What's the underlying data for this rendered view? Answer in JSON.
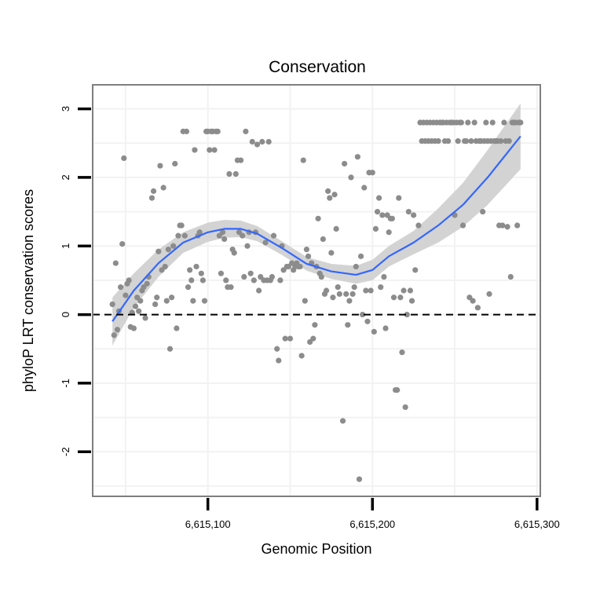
{
  "chart_data": {
    "type": "scatter",
    "title": "Conservation",
    "xlabel": "Genomic Position",
    "ylabel": "phyloP LRT conservation scores",
    "xlim": [
      6615030,
      6615302
    ],
    "ylim": [
      -2.65,
      3.35
    ],
    "x_ticks": [
      {
        "value": 6615100,
        "label": "6,615,100"
      },
      {
        "value": 6615200,
        "label": "6,615,200"
      },
      {
        "value": 6615300,
        "label": "6,615,300"
      }
    ],
    "y_ticks": [
      {
        "value": -2,
        "label": "-2"
      },
      {
        "value": -1,
        "label": "-1"
      },
      {
        "value": 0,
        "label": "0"
      },
      {
        "value": 1,
        "label": "1"
      },
      {
        "value": 2,
        "label": "2"
      },
      {
        "value": 3,
        "label": "3"
      }
    ],
    "reference_line": {
      "y": 0,
      "style": "dashed"
    },
    "grid": true,
    "colors": {
      "points": "#8c8c8c",
      "smooth": "#3366ff",
      "band": "#d3d3d3",
      "grid": "#f2f2f2",
      "frame": "#7f7f7f",
      "reference": "#000000"
    },
    "smooth": {
      "x": [
        6615042,
        6615055,
        6615070,
        6615085,
        6615100,
        6615110,
        6615120,
        6615130,
        6615145,
        6615160,
        6615175,
        6615190,
        6615200,
        6615210,
        6615225,
        6615240,
        6615255,
        6615270,
        6615290
      ],
      "y": [
        -0.1,
        0.35,
        0.75,
        1.05,
        1.2,
        1.25,
        1.25,
        1.18,
        0.97,
        0.74,
        0.63,
        0.58,
        0.65,
        0.85,
        1.05,
        1.3,
        1.6,
        2.0,
        2.6
      ],
      "lower": [
        -0.45,
        0.1,
        0.55,
        0.9,
        1.06,
        1.12,
        1.13,
        1.07,
        0.87,
        0.64,
        0.52,
        0.45,
        0.5,
        0.7,
        0.88,
        1.05,
        1.28,
        1.6,
        2.12
      ],
      "upper": [
        0.25,
        0.6,
        0.95,
        1.2,
        1.34,
        1.38,
        1.37,
        1.29,
        1.07,
        0.84,
        0.74,
        0.71,
        0.8,
        1.0,
        1.22,
        1.55,
        1.92,
        2.4,
        3.08
      ]
    },
    "points": [
      [
        6615042,
        0.15
      ],
      [
        6615043,
        -0.3
      ],
      [
        6615044,
        0.75
      ],
      [
        6615045,
        -0.22
      ],
      [
        6615046,
        0.05
      ],
      [
        6615047,
        0.4
      ],
      [
        6615048,
        1.03
      ],
      [
        6615049,
        2.28
      ],
      [
        6615050,
        0.28
      ],
      [
        6615051,
        0.45
      ],
      [
        6615052,
        0.5
      ],
      [
        6615053,
        -0.18
      ],
      [
        6615054,
        0.03
      ],
      [
        6615055,
        -0.2
      ],
      [
        6615056,
        0.12
      ],
      [
        6615057,
        0.25
      ],
      [
        6615058,
        0.05
      ],
      [
        6615059,
        0.2
      ],
      [
        6615060,
        0.35
      ],
      [
        6615061,
        0.4
      ],
      [
        6615062,
        -0.05
      ],
      [
        6615063,
        0.45
      ],
      [
        6615064,
        0.55
      ],
      [
        6615066,
        1.7
      ],
      [
        6615067,
        1.8
      ],
      [
        6615068,
        0.15
      ],
      [
        6615069,
        0.25
      ],
      [
        6615070,
        0.92
      ],
      [
        6615071,
        2.17
      ],
      [
        6615072,
        0.65
      ],
      [
        6615073,
        1.85
      ],
      [
        6615074,
        0.7
      ],
      [
        6615075,
        0.2
      ],
      [
        6615076,
        0.95
      ],
      [
        6615077,
        -0.5
      ],
      [
        6615078,
        0.25
      ],
      [
        6615079,
        1.0
      ],
      [
        6615080,
        2.2
      ],
      [
        6615081,
        -0.2
      ],
      [
        6615082,
        1.15
      ],
      [
        6615083,
        1.3
      ],
      [
        6615084,
        1.3
      ],
      [
        6615085,
        2.67
      ],
      [
        6615086,
        1.15
      ],
      [
        6615087,
        2.67
      ],
      [
        6615088,
        0.4
      ],
      [
        6615089,
        0.65
      ],
      [
        6615090,
        0.5
      ],
      [
        6615091,
        0.2
      ],
      [
        6615092,
        2.4
      ],
      [
        6615093,
        0.7
      ],
      [
        6615094,
        1.15
      ],
      [
        6615095,
        1.2
      ],
      [
        6615096,
        0.6
      ],
      [
        6615097,
        0.5
      ],
      [
        6615098,
        0.2
      ],
      [
        6615099,
        2.67
      ],
      [
        6615100,
        2.67
      ],
      [
        6615101,
        2.4
      ],
      [
        6615102,
        2.67
      ],
      [
        6615103,
        2.67
      ],
      [
        6615104,
        2.4
      ],
      [
        6615105,
        2.67
      ],
      [
        6615106,
        2.67
      ],
      [
        6615107,
        1.15
      ],
      [
        6615108,
        0.6
      ],
      [
        6615109,
        1.2
      ],
      [
        6615110,
        1.1
      ],
      [
        6615111,
        0.5
      ],
      [
        6615112,
        0.4
      ],
      [
        6615113,
        2.05
      ],
      [
        6615114,
        0.4
      ],
      [
        6615115,
        0.95
      ],
      [
        6615116,
        0.9
      ],
      [
        6615117,
        2.05
      ],
      [
        6615118,
        2.25
      ],
      [
        6615119,
        1.2
      ],
      [
        6615120,
        2.25
      ],
      [
        6615121,
        1.15
      ],
      [
        6615122,
        0.55
      ],
      [
        6615123,
        2.67
      ],
      [
        6615124,
        1.0
      ],
      [
        6615125,
        1.2
      ],
      [
        6615126,
        0.6
      ],
      [
        6615127,
        2.52
      ],
      [
        6615128,
        0.5
      ],
      [
        6615129,
        1.2
      ],
      [
        6615130,
        2.48
      ],
      [
        6615131,
        0.35
      ],
      [
        6615132,
        0.55
      ],
      [
        6615133,
        2.52
      ],
      [
        6615134,
        0.5
      ],
      [
        6615135,
        1.05
      ],
      [
        6615136,
        0.5
      ],
      [
        6615137,
        2.52
      ],
      [
        6615138,
        0.5
      ],
      [
        6615139,
        0.55
      ],
      [
        6615140,
        1.15
      ],
      [
        6615142,
        -0.5
      ],
      [
        6615143,
        -0.67
      ],
      [
        6615144,
        0.5
      ],
      [
        6615145,
        1.0
      ],
      [
        6615146,
        0.65
      ],
      [
        6615147,
        -0.35
      ],
      [
        6615148,
        0.7
      ],
      [
        6615149,
        0.7
      ],
      [
        6615150,
        -0.35
      ],
      [
        6615151,
        0.75
      ],
      [
        6615152,
        0.65
      ],
      [
        6615153,
        0.7
      ],
      [
        6615154,
        0.75
      ],
      [
        6615155,
        0.7
      ],
      [
        6615156,
        0.7
      ],
      [
        6615157,
        -0.6
      ],
      [
        6615158,
        2.25
      ],
      [
        6615159,
        0.2
      ],
      [
        6615160,
        0.95
      ],
      [
        6615161,
        0.85
      ],
      [
        6615162,
        -0.4
      ],
      [
        6615163,
        0.75
      ],
      [
        6615164,
        -0.35
      ],
      [
        6615165,
        -0.15
      ],
      [
        6615166,
        0.7
      ],
      [
        6615167,
        1.4
      ],
      [
        6615168,
        0.6
      ],
      [
        6615169,
        0.55
      ],
      [
        6615170,
        1.1
      ],
      [
        6615171,
        0.3
      ],
      [
        6615172,
        0.35
      ],
      [
        6615173,
        1.8
      ],
      [
        6615174,
        1.7
      ],
      [
        6615175,
        0.9
      ],
      [
        6615176,
        0.25
      ],
      [
        6615177,
        1.75
      ],
      [
        6615178,
        1.25
      ],
      [
        6615179,
        0.4
      ],
      [
        6615180,
        0.3
      ],
      [
        6615182,
        -1.55
      ],
      [
        6615183,
        2.2
      ],
      [
        6615184,
        0.3
      ],
      [
        6615185,
        -0.15
      ],
      [
        6615186,
        0.2
      ],
      [
        6615187,
        2.0
      ],
      [
        6615188,
        0.3
      ],
      [
        6615189,
        0.4
      ],
      [
        6615190,
        0.7
      ],
      [
        6615191,
        2.3
      ],
      [
        6615192,
        -2.4
      ],
      [
        6615193,
        0.85
      ],
      [
        6615194,
        0.0
      ],
      [
        6615195,
        1.85
      ],
      [
        6615196,
        0.35
      ],
      [
        6615197,
        -0.1
      ],
      [
        6615198,
        2.07
      ],
      [
        6615199,
        0.35
      ],
      [
        6615200,
        2.07
      ],
      [
        6615201,
        -0.25
      ],
      [
        6615202,
        1.25
      ],
      [
        6615203,
        1.5
      ],
      [
        6615204,
        1.7
      ],
      [
        6615205,
        0.4
      ],
      [
        6615206,
        1.45
      ],
      [
        6615207,
        0.55
      ],
      [
        6615208,
        -0.2
      ],
      [
        6615209,
        1.45
      ],
      [
        6615210,
        1.2
      ],
      [
        6615211,
        1.4
      ],
      [
        6615212,
        1.4
      ],
      [
        6615213,
        0.25
      ],
      [
        6615214,
        -1.1
      ],
      [
        6615215,
        -1.1
      ],
      [
        6615216,
        1.7
      ],
      [
        6615217,
        0.25
      ],
      [
        6615218,
        -0.55
      ],
      [
        6615219,
        0.35
      ],
      [
        6615220,
        -1.35
      ],
      [
        6615221,
        0.0
      ],
      [
        6615222,
        1.5
      ],
      [
        6615223,
        0.35
      ],
      [
        6615224,
        0.2
      ],
      [
        6615225,
        1.45
      ],
      [
        6615226,
        0.65
      ],
      [
        6615228,
        1.3
      ],
      [
        6615229,
        2.8
      ],
      [
        6615230,
        2.53
      ],
      [
        6615231,
        2.8
      ],
      [
        6615232,
        2.53
      ],
      [
        6615233,
        2.8
      ],
      [
        6615234,
        2.53
      ],
      [
        6615235,
        2.8
      ],
      [
        6615236,
        2.53
      ],
      [
        6615237,
        2.8
      ],
      [
        6615238,
        2.53
      ],
      [
        6615239,
        2.8
      ],
      [
        6615240,
        2.53
      ],
      [
        6615241,
        2.8
      ],
      [
        6615242,
        2.8
      ],
      [
        6615243,
        2.8
      ],
      [
        6615244,
        2.53
      ],
      [
        6615245,
        2.8
      ],
      [
        6615246,
        2.53
      ],
      [
        6615247,
        2.8
      ],
      [
        6615248,
        2.8
      ],
      [
        6615249,
        2.8
      ],
      [
        6615250,
        1.45
      ],
      [
        6615251,
        2.8
      ],
      [
        6615252,
        2.53
      ],
      [
        6615253,
        2.8
      ],
      [
        6615254,
        2.8
      ],
      [
        6615255,
        1.3
      ],
      [
        6615256,
        2.53
      ],
      [
        6615257,
        2.53
      ],
      [
        6615258,
        2.8
      ],
      [
        6615259,
        0.25
      ],
      [
        6615260,
        2.53
      ],
      [
        6615261,
        0.2
      ],
      [
        6615262,
        2.8
      ],
      [
        6615263,
        2.53
      ],
      [
        6615264,
        0.1
      ],
      [
        6615265,
        2.53
      ],
      [
        6615266,
        2.53
      ],
      [
        6615267,
        1.5
      ],
      [
        6615268,
        2.53
      ],
      [
        6615269,
        2.8
      ],
      [
        6615270,
        2.53
      ],
      [
        6615271,
        0.3
      ],
      [
        6615272,
        2.53
      ],
      [
        6615273,
        2.8
      ],
      [
        6615274,
        2.53
      ],
      [
        6615275,
        2.53
      ],
      [
        6615276,
        2.53
      ],
      [
        6615277,
        1.3
      ],
      [
        6615278,
        2.53
      ],
      [
        6615279,
        1.3
      ],
      [
        6615280,
        2.8
      ],
      [
        6615281,
        2.53
      ],
      [
        6615282,
        1.28
      ],
      [
        6615283,
        2.53
      ],
      [
        6615284,
        0.55
      ],
      [
        6615285,
        2.8
      ],
      [
        6615286,
        2.8
      ],
      [
        6615287,
        2.8
      ],
      [
        6615288,
        1.3
      ],
      [
        6615289,
        2.8
      ],
      [
        6615290,
        2.8
      ]
    ]
  }
}
